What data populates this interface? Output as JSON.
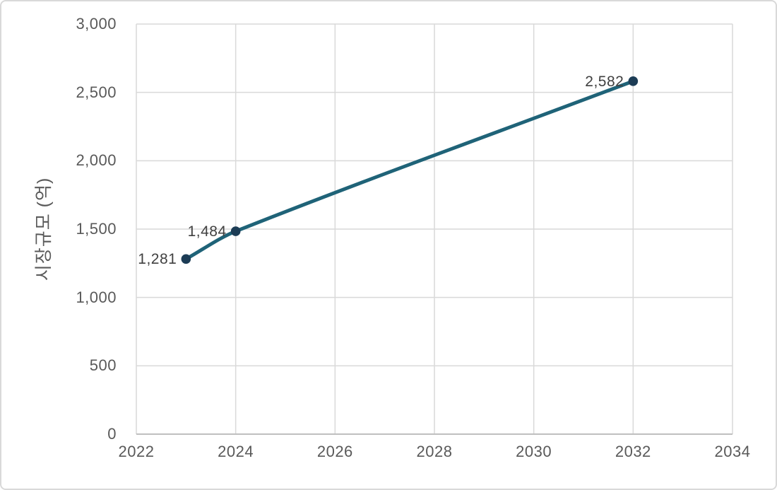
{
  "figure": {
    "background": "#ffffff",
    "border_color": "#d9d9d9"
  },
  "chart_data": {
    "type": "line",
    "title": "",
    "xlabel": "",
    "ylabel": "시장규모 (억)",
    "series": [
      {
        "name": "시장규모",
        "x": [
          2023,
          2024,
          2032
        ],
        "values": [
          1281,
          1484,
          2582
        ],
        "point_labels": [
          "1,281",
          "1,484",
          "2,582"
        ]
      }
    ],
    "xlim": [
      2022,
      2034
    ],
    "ylim": [
      0,
      3000
    ],
    "x_ticks": [
      {
        "value": 2022,
        "label": "2022"
      },
      {
        "value": 2024,
        "label": "2024"
      },
      {
        "value": 2026,
        "label": "2026"
      },
      {
        "value": 2028,
        "label": "2028"
      },
      {
        "value": 2030,
        "label": "2030"
      },
      {
        "value": 2032,
        "label": "2032"
      },
      {
        "value": 2034,
        "label": "2034"
      }
    ],
    "y_ticks": [
      {
        "value": 0,
        "label": "0"
      },
      {
        "value": 500,
        "label": "500"
      },
      {
        "value": 1000,
        "label": "1,000"
      },
      {
        "value": 1500,
        "label": "1,500"
      },
      {
        "value": 2000,
        "label": "2,000"
      },
      {
        "value": 2500,
        "label": "2,500"
      },
      {
        "value": 3000,
        "label": "3,000"
      }
    ],
    "grid": true,
    "smoothed_line": true,
    "legend": "none",
    "colors": {
      "line": "#1f6378",
      "marker": "#1c3c55",
      "gridline": "#d9d9d9",
      "axis_line": "#bfbfbf",
      "tick_label": "#595959",
      "data_label": "#404040"
    }
  }
}
